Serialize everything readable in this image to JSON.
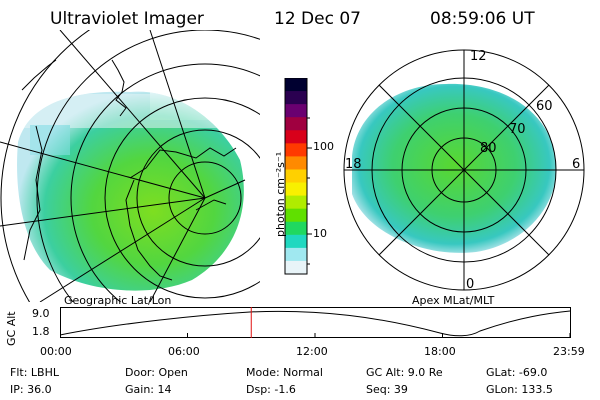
{
  "header": {
    "title": "Ultraviolet Imager",
    "date": "12 Dec 07",
    "time": "08:59:06 UT"
  },
  "panels": {
    "geo_caption": "Geographic Lat/Lon",
    "apex_caption": "Apex MLat/MLT"
  },
  "colorbar": {
    "unit_label": "photon cm⁻²s⁻¹",
    "tick_100": "100",
    "tick_10": "10",
    "colors": [
      "#000030",
      "#2a0050",
      "#6a0070",
      "#a00040",
      "#d8001a",
      "#ff3a00",
      "#ff8a00",
      "#ffd000",
      "#f8f000",
      "#b0ec00",
      "#60e000",
      "#20d860",
      "#20d8c0",
      "#a0e8f0",
      "#e8f4f8"
    ]
  },
  "apex": {
    "mlt_12": "12",
    "mlt_18": "18",
    "mlt_6": "6",
    "mlt_0": "0",
    "lat_60": "60",
    "lat_70": "70",
    "lat_80": "80"
  },
  "altitude": {
    "axis_title": "GC Alt",
    "ytick_top": "9.0",
    "ytick_bottom": "1.8",
    "xticks": [
      "00:00",
      "06:00",
      "12:00",
      "18:00",
      "23:59"
    ],
    "current_time_marker_hour": 9.0
  },
  "info": {
    "flt": "Flt: LBHL",
    "door": "Door: Open",
    "mode": "Mode: Normal",
    "gc_alt": "GC Alt: 9.0 Re",
    "glat": "GLat: -69.0",
    "ip": "IP: 36.0",
    "gain": "Gain: 14",
    "dsp": "Dsp:    -1.6",
    "seq": "Seq: 39",
    "glon": "GLon: 133.5"
  }
}
